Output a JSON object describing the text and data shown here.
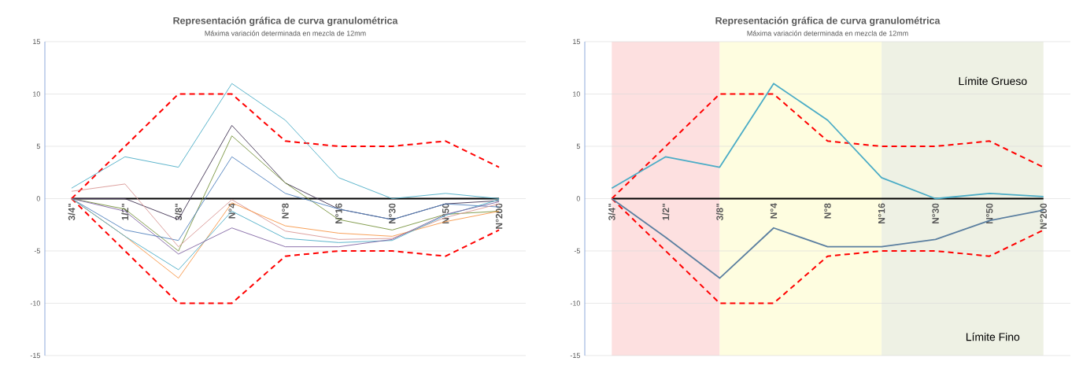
{
  "chart_data": [
    {
      "type": "line",
      "title": "Representación gráfica de curva granulométrica",
      "subtitle": "Máxima variación determinada en mezcla de 12mm",
      "categories": [
        "3/4\"",
        "1/2\"",
        "3/8\"",
        "N°4",
        "N°8",
        "N°16",
        "N°30",
        "N°50",
        "N°200"
      ],
      "ylim": [
        -15,
        15
      ],
      "yticks": [
        -15,
        -10,
        -5,
        0,
        5,
        10,
        15
      ],
      "grid": "y",
      "marker": "none",
      "series": [
        {
          "color": "#000000",
          "values": [
            0,
            0,
            0,
            0,
            0,
            0,
            0,
            0,
            0
          ]
        },
        {
          "color": "#ff0000",
          "line_style": "dashed",
          "values": [
            0,
            5,
            10,
            10,
            5.5,
            5,
            5,
            5.5,
            3
          ]
        },
        {
          "color": "#ff0000",
          "line_style": "dashed",
          "values": [
            0,
            -5,
            -10,
            -10,
            -5.5,
            -5,
            -5,
            -5.5,
            -3
          ]
        },
        {
          "color": "#4bacc6",
          "values": [
            1,
            4,
            3,
            11,
            7.5,
            2,
            0,
            0.5,
            0
          ]
        },
        {
          "color": "#403152",
          "values": [
            0,
            0,
            -2,
            7,
            1.5,
            -1,
            -2,
            -0.5,
            -0.2
          ]
        },
        {
          "color": "#77933c",
          "values": [
            0,
            -1,
            -5,
            6,
            1.5,
            -2,
            -3,
            -1.5,
            -1.2
          ]
        },
        {
          "color": "#4f81bd",
          "values": [
            0,
            -3,
            -4,
            4,
            0.5,
            -1,
            -2,
            -0.5,
            -0.8
          ]
        },
        {
          "color": "#d99694",
          "values": [
            0.7,
            1.4,
            -4.6,
            -0.1,
            -3.1,
            -3.9,
            -3.8,
            -1.8,
            -0.5
          ]
        },
        {
          "color": "#f79646",
          "values": [
            0,
            -3.6,
            -7.6,
            -0.4,
            -2.6,
            -3.3,
            -3.6,
            -2.2,
            -1.2
          ]
        },
        {
          "color": "#4bacc6",
          "values": [
            0,
            -3.6,
            -6.8,
            -1.2,
            -3.8,
            -4.2,
            -4,
            -1.6,
            -0.1
          ]
        },
        {
          "color": "#8064a2",
          "values": [
            0,
            -1.2,
            -5.3,
            -2.8,
            -4.6,
            -4.6,
            -3.9,
            -1.5,
            -0.3
          ]
        }
      ]
    },
    {
      "type": "line",
      "title": "Representación gráfica de curva granulométrica",
      "subtitle": "Máxima variación determinada en mezcla de 12mm",
      "categories": [
        "3/4\"",
        "1/2\"",
        "3/8\"",
        "N°4",
        "N°8",
        "N°16",
        "N°30",
        "N°50",
        "N°200"
      ],
      "ylim": [
        -15,
        15
      ],
      "yticks": [
        -15,
        -10,
        -5,
        0,
        5,
        10,
        15
      ],
      "grid": "y",
      "marker": "none",
      "annotations": [
        "Límite Grueso",
        "Límite Fino"
      ],
      "bands": [
        {
          "axis": "x",
          "from": "3/4\"",
          "to": "3/8\"",
          "color": "#fde0e0"
        },
        {
          "axis": "x",
          "from": "3/8\"",
          "to": "N°16",
          "color": "#fefde0"
        },
        {
          "axis": "x",
          "from": "N°16",
          "to": "N°200",
          "color": "#eef1e4"
        }
      ],
      "series": [
        {
          "color": "#000000",
          "values": [
            0,
            0,
            0,
            0,
            0,
            0,
            0,
            0,
            0
          ]
        },
        {
          "color": "#ff0000",
          "line_style": "dashed",
          "values": [
            0,
            5,
            10,
            10,
            5.5,
            5,
            5,
            5.5,
            3
          ]
        },
        {
          "color": "#ff0000",
          "line_style": "dashed",
          "values": [
            0,
            -5,
            -10,
            -10,
            -5.5,
            -5,
            -5,
            -5.5,
            -3
          ]
        },
        {
          "color": "#4bacc6",
          "values": [
            1,
            4,
            3,
            11,
            7.5,
            2,
            0,
            0.5,
            0.2
          ]
        },
        {
          "color": "#5b7fa0",
          "values": [
            0,
            -3.7,
            -7.6,
            -2.8,
            -4.6,
            -4.6,
            -3.9,
            -2.1,
            -1.1
          ]
        }
      ]
    }
  ]
}
